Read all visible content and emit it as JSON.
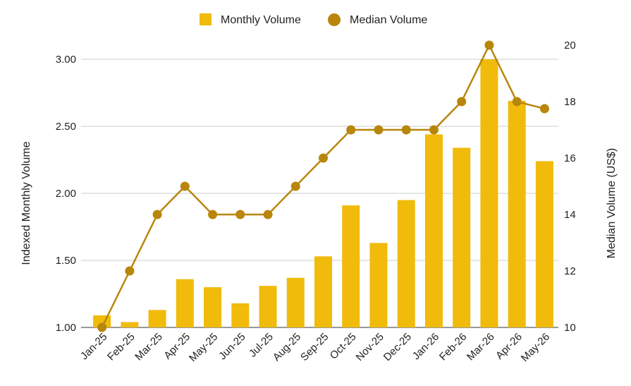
{
  "chart_data": {
    "type": "bar",
    "categories": [
      "Jan-25",
      "Feb-25",
      "Mar-25",
      "Apr-25",
      "May-25",
      "Jun-25",
      "Jul-25",
      "Aug-25",
      "Sep-25",
      "Oct-25",
      "Nov-25",
      "Dec-25",
      "Jan-26",
      "Feb-26",
      "Mar-26",
      "Apr-26",
      "May-26"
    ],
    "series": [
      {
        "name": "Monthly Volume",
        "type": "bar",
        "axis": "left",
        "color": "#f0bb0a",
        "values": [
          1.09,
          1.04,
          1.13,
          1.36,
          1.3,
          1.18,
          1.31,
          1.37,
          1.53,
          1.91,
          1.63,
          1.95,
          2.44,
          2.34,
          3.0,
          2.69,
          2.24
        ]
      },
      {
        "name": "Median Volume",
        "type": "line",
        "axis": "right",
        "color": "#b8860b",
        "values": [
          10,
          12,
          14,
          15,
          14,
          14,
          14,
          15,
          16,
          17,
          17,
          17,
          17,
          18,
          20,
          18,
          17.75
        ]
      }
    ],
    "title": "",
    "xlabel": "",
    "ylabel": "Indexed Monthly Volume",
    "y2label": "Median Volume (US$)",
    "ylim": [
      1.0,
      3.0
    ],
    "y2lim": [
      10,
      20
    ],
    "yticks": [
      "1.00",
      "1.50",
      "2.00",
      "2.50",
      "3.00"
    ],
    "y2ticks": [
      "10",
      "12",
      "14",
      "16",
      "18",
      "20"
    ],
    "grid": true,
    "legend_position": "top-center"
  }
}
